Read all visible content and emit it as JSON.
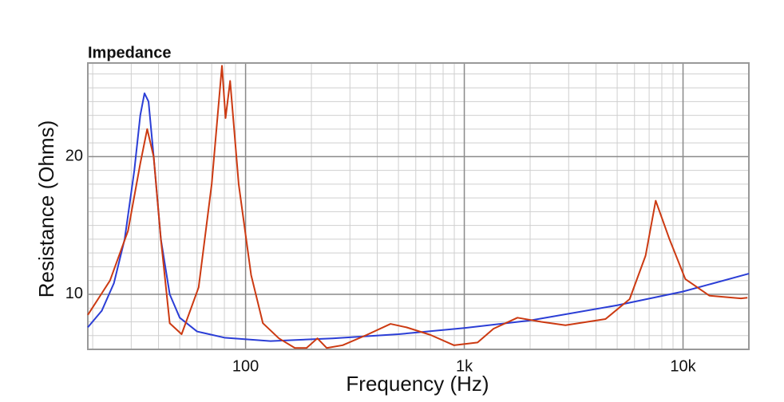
{
  "chart_data": {
    "type": "line",
    "title": "Impedance",
    "x_label": "Frequency (Hz)",
    "y_label": "Resistance (Ohms)",
    "x_log": true,
    "grid": true,
    "xlim": [
      19,
      20000
    ],
    "ylim": [
      6,
      26.8
    ],
    "xticks": [
      {
        "value": 100,
        "label": "100"
      },
      {
        "value": 1000,
        "label": "1k"
      },
      {
        "value": 10000,
        "label": "10k"
      }
    ],
    "yticks": [
      10,
      20
    ],
    "xminor_ticks": [
      20,
      30,
      40,
      50,
      60,
      70,
      80,
      90,
      200,
      300,
      400,
      500,
      600,
      700,
      800,
      900,
      2000,
      3000,
      4000,
      5000,
      6000,
      7000,
      8000,
      9000,
      20000
    ],
    "yminor_ticks": [
      7,
      8,
      9,
      11,
      12,
      13,
      14,
      15,
      16,
      17,
      18,
      19,
      21,
      22,
      23,
      24,
      25,
      26
    ],
    "series": [
      {
        "color": "#2b3ed6",
        "x": [
          19,
          22,
          25,
          28,
          31,
          33,
          34.5,
          36,
          38,
          41,
          45,
          50,
          60,
          80,
          130,
          250,
          500,
          1000,
          2000,
          5000,
          10000,
          20000
        ],
        "values": [
          7.6,
          8.8,
          10.8,
          14,
          19,
          23,
          24.6,
          24,
          20,
          14,
          10,
          8.3,
          7.3,
          6.85,
          6.6,
          6.8,
          7.1,
          7.55,
          8.1,
          9.2,
          10.2,
          11.5
        ]
      },
      {
        "color": "#cc3a12",
        "x": [
          19,
          24,
          29,
          33,
          35.5,
          38,
          41,
          45,
          51,
          61,
          70,
          75,
          78,
          81,
          85,
          93,
          106,
          120,
          142,
          168,
          190,
          213,
          235,
          278,
          358,
          460,
          544,
          700,
          896,
          1150,
          1360,
          1750,
          2250,
          2900,
          4420,
          5700,
          6740,
          7500,
          8670,
          10250,
          13200,
          18400,
          19700
        ],
        "values": [
          8.5,
          11,
          14.6,
          19.5,
          22,
          20,
          14,
          7.9,
          7.1,
          10.5,
          18,
          23.5,
          26.6,
          22.8,
          25.5,
          18,
          11.4,
          7.9,
          6.8,
          6.1,
          6.1,
          6.8,
          6.1,
          6.3,
          7.05,
          7.85,
          7.6,
          7.05,
          6.3,
          6.5,
          7.5,
          8.3,
          8.0,
          7.75,
          8.2,
          9.65,
          12.8,
          16.8,
          14.0,
          11.1,
          9.9,
          9.7,
          9.75
        ]
      }
    ]
  }
}
